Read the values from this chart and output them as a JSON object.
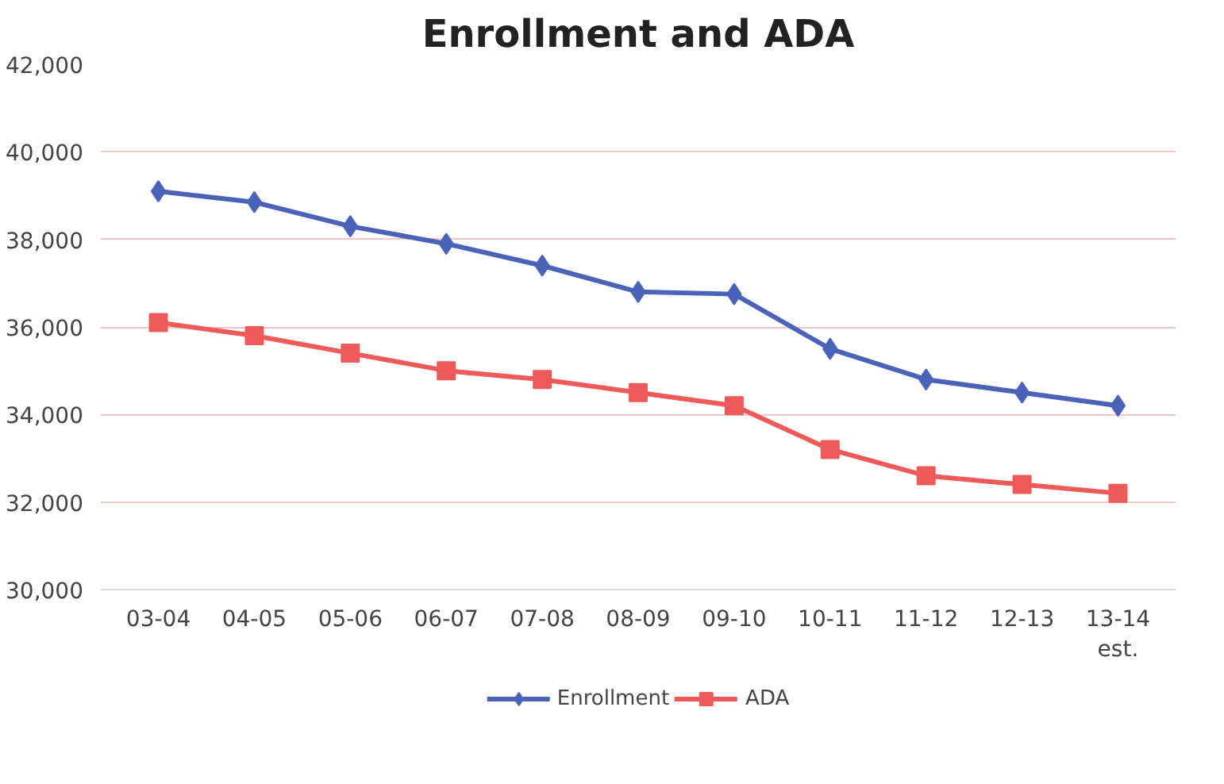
{
  "chart_data": {
    "type": "line",
    "title": "Enrollment and ADA",
    "categories": [
      "03-04",
      "04-05",
      "05-06",
      "06-07",
      "07-08",
      "08-09",
      "09-10",
      "10-11",
      "11-12",
      "12-13",
      "13-14\nest."
    ],
    "series": [
      {
        "name": "Enrollment",
        "color": "#4a63b8",
        "marker": "diamond",
        "values": [
          39100,
          38850,
          38300,
          37900,
          37400,
          36800,
          36750,
          35500,
          34800,
          34500,
          34200
        ]
      },
      {
        "name": "ADA",
        "color": "#ee5a5a",
        "marker": "square",
        "values": [
          36100,
          35800,
          35400,
          35000,
          34800,
          34500,
          34200,
          33200,
          32600,
          32400,
          32200
        ]
      }
    ],
    "ylim": [
      30000,
      42000
    ],
    "yticks": [
      {
        "value": 30000,
        "label": "30,000"
      },
      {
        "value": 32000,
        "label": "32,000"
      },
      {
        "value": 34000,
        "label": "34,000"
      },
      {
        "value": 36000,
        "label": "36,000"
      },
      {
        "value": 38000,
        "label": "38,000"
      },
      {
        "value": 40000,
        "label": "40,000"
      },
      {
        "value": 42000,
        "label": "42,000"
      }
    ],
    "grid": "y",
    "legend": "bottom"
  }
}
